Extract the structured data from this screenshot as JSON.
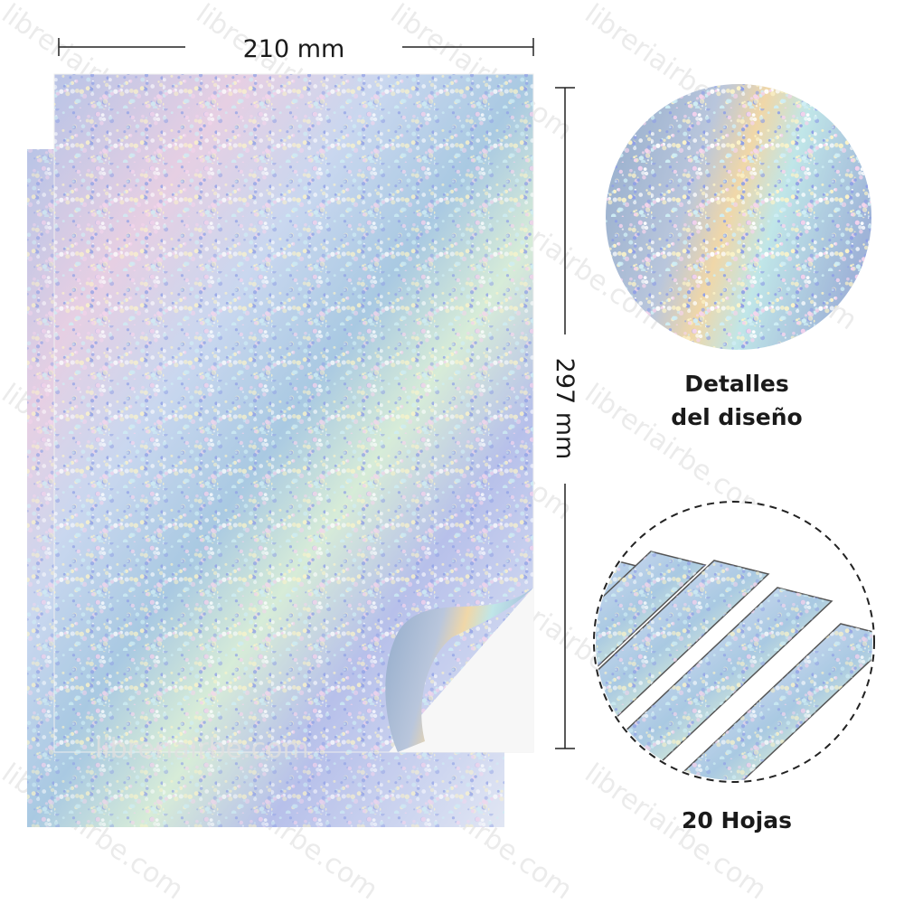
{
  "dimensions": {
    "width": "210 mm",
    "height": "297 mm"
  },
  "details": {
    "label_lines": [
      "Detalles",
      "del diseño"
    ]
  },
  "sheets": {
    "label": "20 Hojas"
  },
  "watermark": "libreriairbe.com"
}
